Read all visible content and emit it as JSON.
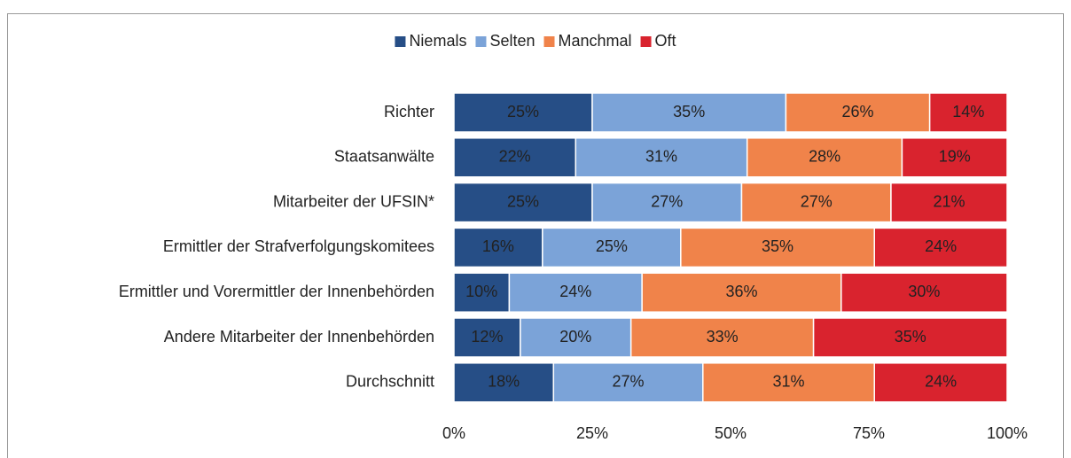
{
  "chart_data": {
    "type": "stacked_bar_horizontal",
    "categories": [
      "Richter",
      "Staatsanwälte",
      "Mitarbeiter der UFSIN*",
      "Ermittler der Strafverfolgungskomitees",
      "Ermittler und Vorermittler der Innenbehörden",
      "Andere Mitarbeiter der Innenbehörden",
      "Durchschnitt"
    ],
    "series": [
      {
        "name": "Niemals",
        "color": "#264e86",
        "label_color": "#ffffff",
        "values": [
          25,
          22,
          25,
          16,
          10,
          12,
          18
        ],
        "value_labels": [
          "25%",
          "22%",
          "25%",
          "16%",
          "10%",
          "12%",
          "18%"
        ]
      },
      {
        "name": "Selten",
        "color": "#7ba3d8",
        "label_color": "#222222",
        "values": [
          35,
          31,
          27,
          25,
          24,
          20,
          27
        ],
        "value_labels": [
          "35%",
          "31%",
          "27%",
          "25%",
          "24%",
          "20%",
          "27%"
        ]
      },
      {
        "name": "Manchmal",
        "color": "#f0834a",
        "label_color": "#222222",
        "values": [
          26,
          28,
          27,
          35,
          36,
          33,
          31
        ],
        "value_labels": [
          "26%",
          "28%",
          "27%",
          "35%",
          "36%",
          "33%",
          "31%"
        ]
      },
      {
        "name": "Oft",
        "color": "#d9232e",
        "label_color": "#ffffff",
        "values": [
          14,
          19,
          21,
          24,
          30,
          35,
          24
        ],
        "value_labels": [
          "14%",
          "19%",
          "21%",
          "24%",
          "30%",
          "35%",
          "24%"
        ]
      }
    ],
    "xlim": [
      0,
      100
    ],
    "xticks": [
      {
        "value": 0,
        "label": "0%"
      },
      {
        "value": 25,
        "label": "25%"
      },
      {
        "value": 50,
        "label": "50%"
      },
      {
        "value": 75,
        "label": "75%"
      },
      {
        "value": 100,
        "label": "100%"
      }
    ],
    "grid": false,
    "legend": "top"
  }
}
